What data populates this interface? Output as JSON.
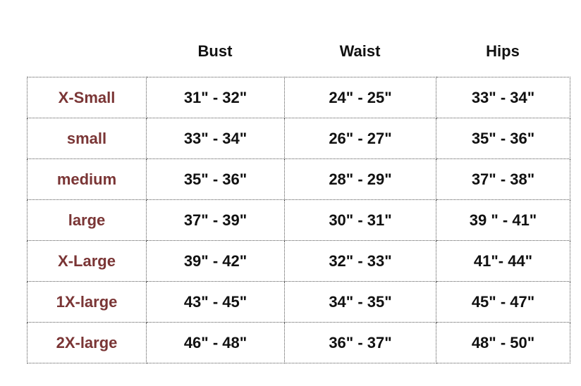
{
  "headers": [
    "Bust",
    "Waist",
    "Hips"
  ],
  "rows": [
    {
      "size": "X-Small",
      "bust": "31\" -  32\"",
      "waist": "24\" - 25\"",
      "hips": "33\" - 34\""
    },
    {
      "size": "small",
      "bust": "33\" - 34\"",
      "waist": "26\" - 27\"",
      "hips": "35\" - 36\""
    },
    {
      "size": "medium",
      "bust": "35\" - 36\"",
      "waist": "28\" - 29\"",
      "hips": "37\" - 38\""
    },
    {
      "size": "large",
      "bust": "37\" - 39\"",
      "waist": "30\" - 31\"",
      "hips": "39 \" - 41\""
    },
    {
      "size": "X-Large",
      "bust": "39\" - 42\"",
      "waist": "32\" - 33\"",
      "hips": "41\"- 44\""
    },
    {
      "size": "1X-large",
      "bust": "43\" - 45\"",
      "waist": "34\" - 35\"",
      "hips": "45\" - 47\""
    },
    {
      "size": "2X-large",
      "bust": "46\" - 48\"",
      "waist": "36\" - 37\"",
      "hips": "48\" - 50\""
    }
  ],
  "colors": {
    "size_label": "#7a3535",
    "text": "#111111"
  }
}
